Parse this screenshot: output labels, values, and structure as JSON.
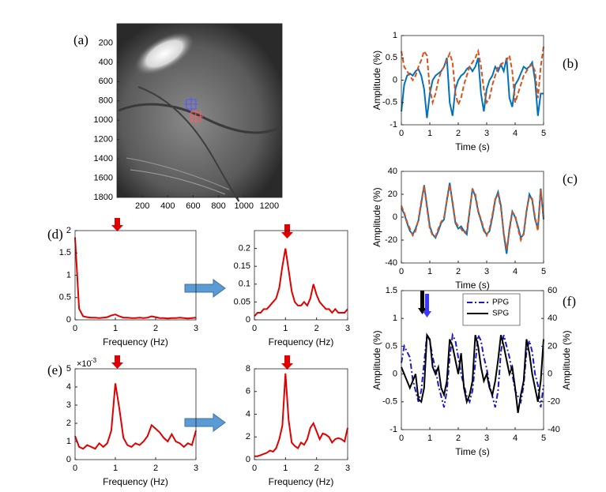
{
  "chart_data": [
    {
      "type": "image",
      "label": "(a)",
      "xlim": [
        0,
        1300
      ],
      "ylim": [
        0,
        1800
      ],
      "yreverse": true,
      "xticks": [
        200,
        400,
        600,
        800,
        1000,
        1200
      ],
      "yticks": [
        200,
        400,
        600,
        800,
        1000,
        1200,
        1400,
        1600,
        1800
      ],
      "points": [
        {
          "x": 584,
          "y": 834,
          "color": "#5a5aff"
        },
        {
          "x": 621,
          "y": 964,
          "color": "#ff5a5a"
        }
      ]
    },
    {
      "type": "line",
      "label": "(b)",
      "xlabel": "Time (s)",
      "ylabel": "Amplitude (%)",
      "xlim": [
        0,
        5
      ],
      "ylim": [
        -1,
        1
      ],
      "xticks": [
        0,
        1,
        2,
        3,
        4,
        5
      ],
      "yticks": [
        -1,
        -0.5,
        0,
        0.5,
        1
      ],
      "x": [
        0,
        0.1,
        0.2,
        0.3,
        0.4,
        0.5,
        0.6,
        0.7,
        0.8,
        0.9,
        1,
        1.1,
        1.2,
        1.3,
        1.4,
        1.5,
        1.6,
        1.7,
        1.8,
        1.9,
        2,
        2.1,
        2.2,
        2.3,
        2.4,
        2.5,
        2.6,
        2.7,
        2.8,
        2.9,
        3,
        3.1,
        3.2,
        3.3,
        3.4,
        3.5,
        3.6,
        3.7,
        3.8,
        3.9,
        4,
        4.1,
        4.2,
        4.3,
        4.4,
        4.5,
        4.6,
        4.7,
        4.8,
        4.9,
        5
      ],
      "series": [
        {
          "color": "#0072bd",
          "dash": "solid",
          "values": [
            -0.7,
            -0.1,
            0.1,
            0.15,
            0.1,
            0.2,
            0.25,
            0.1,
            -0.2,
            -0.85,
            -0.3,
            0.0,
            0.1,
            0.15,
            0.2,
            0.3,
            0.5,
            -0.5,
            -0.8,
            -0.2,
            0.0,
            0.1,
            0.15,
            0.25,
            0.3,
            0.2,
            0.3,
            0.5,
            -0.3,
            -0.7,
            -0.2,
            0.0,
            0.1,
            0.3,
            0.2,
            0.35,
            0.2,
            0.5,
            -0.4,
            -0.6,
            -0.1,
            0.0,
            0.15,
            0.3,
            0.25,
            0.3,
            0.4,
            0.0,
            -0.8,
            -0.3,
            -0.3
          ]
        },
        {
          "color": "#d95319",
          "dash": "dashed",
          "values": [
            0.65,
            0.3,
            0.2,
            0.1,
            0.0,
            0.1,
            0.3,
            0.45,
            0.65,
            0.55,
            -0.2,
            -0.5,
            -0.3,
            0.0,
            0.2,
            0.3,
            0.45,
            0.6,
            0.4,
            -0.3,
            -0.55,
            -0.4,
            -0.1,
            0.1,
            0.3,
            0.4,
            0.5,
            0.65,
            0.3,
            -0.2,
            -0.5,
            -0.4,
            -0.1,
            0.1,
            0.3,
            0.35,
            0.4,
            0.45,
            0.55,
            0.2,
            -0.5,
            -0.3,
            -0.1,
            0.1,
            0.2,
            0.3,
            0.35,
            0.2,
            -0.4,
            0.3,
            0.75
          ]
        }
      ]
    },
    {
      "type": "line",
      "label": "(c)",
      "xlabel": "Time (s)",
      "ylabel": "Amplitude (%)",
      "xlim": [
        0,
        5
      ],
      "ylim": [
        -40,
        40
      ],
      "xticks": [
        0,
        1,
        2,
        3,
        4,
        5
      ],
      "yticks": [
        -40,
        -20,
        0,
        20,
        40
      ],
      "x": [
        0,
        0.1,
        0.2,
        0.3,
        0.4,
        0.5,
        0.6,
        0.7,
        0.8,
        0.9,
        1,
        1.1,
        1.2,
        1.3,
        1.4,
        1.5,
        1.6,
        1.7,
        1.8,
        1.9,
        2,
        2.1,
        2.2,
        2.3,
        2.4,
        2.5,
        2.6,
        2.7,
        2.8,
        2.9,
        3,
        3.1,
        3.2,
        3.3,
        3.4,
        3.5,
        3.6,
        3.7,
        3.8,
        3.9,
        4,
        4.1,
        4.2,
        4.3,
        4.4,
        4.5,
        4.6,
        4.7,
        4.8,
        4.9,
        5
      ],
      "series": [
        {
          "color": "#0072bd",
          "dash": "solid",
          "values": [
            8,
            3,
            -5,
            -12,
            -15,
            -10,
            -3,
            12,
            28,
            10,
            -8,
            -15,
            -18,
            -12,
            -5,
            -2,
            15,
            30,
            12,
            -5,
            -10,
            -8,
            -12,
            -15,
            5,
            25,
            18,
            5,
            -3,
            -12,
            -15,
            -12,
            0,
            15,
            22,
            10,
            -15,
            -32,
            -10,
            5,
            0,
            -8,
            -18,
            -15,
            5,
            20,
            15,
            -2,
            -10,
            25,
            -2
          ]
        },
        {
          "color": "#d95319",
          "dash": "dashed",
          "values": [
            10,
            4,
            -4,
            -10,
            -16,
            -12,
            -2,
            14,
            27,
            8,
            -10,
            -16,
            -17,
            -10,
            -4,
            0,
            14,
            28,
            14,
            -4,
            -8,
            -10,
            -14,
            -12,
            6,
            24,
            20,
            6,
            -2,
            -10,
            -16,
            -10,
            2,
            16,
            20,
            8,
            -14,
            -28,
            -12,
            4,
            2,
            -10,
            -20,
            -14,
            6,
            18,
            16,
            0,
            -12,
            24,
            0
          ]
        }
      ]
    },
    {
      "type": "line",
      "label": "(d)",
      "xlabel": "Frequency (Hz)",
      "xlim": [
        0,
        3
      ],
      "ylim": [
        0,
        2
      ],
      "xticks": [
        0,
        1,
        2,
        3
      ],
      "yticks": [
        0,
        0.5,
        1,
        1.5,
        2
      ],
      "x": [
        0,
        0.1,
        0.2,
        0.3,
        0.4,
        0.5,
        0.6,
        0.7,
        0.8,
        0.9,
        1,
        1.1,
        1.2,
        1.3,
        1.4,
        1.5,
        1.6,
        1.7,
        1.8,
        1.9,
        2,
        2.1,
        2.2,
        2.3,
        2.4,
        2.5,
        2.6,
        2.7,
        2.8,
        2.9,
        3
      ],
      "series": [
        {
          "color": "#e00000",
          "dash": "solid",
          "values": [
            1.85,
            0.25,
            0.08,
            0.06,
            0.05,
            0.05,
            0.04,
            0.05,
            0.06,
            0.1,
            0.12,
            0.08,
            0.05,
            0.05,
            0.04,
            0.04,
            0.05,
            0.04,
            0.05,
            0.08,
            0.06,
            0.04,
            0.04,
            0.03,
            0.04,
            0.04,
            0.05,
            0.04,
            0.03,
            0.04,
            0.05
          ]
        }
      ]
    },
    {
      "type": "line",
      "xlabel": "Frequency (Hz)",
      "xlim": [
        0,
        3
      ],
      "ylim": [
        0,
        0.25
      ],
      "xticks": [
        0,
        1,
        2,
        3
      ],
      "yticks": [
        0,
        0.05,
        0.1,
        0.15,
        0.2
      ],
      "x": [
        0,
        0.1,
        0.2,
        0.3,
        0.4,
        0.5,
        0.6,
        0.7,
        0.8,
        0.9,
        1,
        1.1,
        1.2,
        1.3,
        1.4,
        1.5,
        1.6,
        1.7,
        1.8,
        1.9,
        2,
        2.1,
        2.2,
        2.3,
        2.4,
        2.5,
        2.6,
        2.7,
        2.8,
        2.9,
        3
      ],
      "series": [
        {
          "color": "#e00000",
          "dash": "solid",
          "values": [
            0.01,
            0.02,
            0.02,
            0.03,
            0.03,
            0.04,
            0.05,
            0.06,
            0.09,
            0.15,
            0.2,
            0.14,
            0.08,
            0.05,
            0.04,
            0.04,
            0.05,
            0.04,
            0.06,
            0.1,
            0.07,
            0.05,
            0.04,
            0.03,
            0.03,
            0.02,
            0.03,
            0.02,
            0.02,
            0.02,
            0.03
          ]
        }
      ]
    },
    {
      "type": "line",
      "label": "(e)",
      "xlabel": "Frequency (Hz)",
      "multiplier": {
        "base": "×10",
        "exponent": "-3"
      },
      "xlim": [
        0,
        3
      ],
      "ylim": [
        0,
        5
      ],
      "xticks": [
        0,
        1,
        2,
        3
      ],
      "yticks": [
        0,
        1,
        2,
        3,
        4,
        5
      ],
      "x": [
        0,
        0.1,
        0.2,
        0.3,
        0.4,
        0.5,
        0.6,
        0.7,
        0.8,
        0.9,
        1,
        1.1,
        1.2,
        1.3,
        1.4,
        1.5,
        1.6,
        1.7,
        1.8,
        1.9,
        2,
        2.1,
        2.2,
        2.3,
        2.4,
        2.5,
        2.6,
        2.7,
        2.8,
        2.9,
        3
      ],
      "series": [
        {
          "color": "#e00000",
          "dash": "solid",
          "values": [
            1.3,
            0.7,
            0.6,
            0.8,
            0.7,
            0.6,
            0.9,
            0.7,
            0.9,
            1.6,
            4.2,
            2.8,
            1.2,
            0.8,
            0.7,
            0.9,
            0.8,
            1.0,
            1.3,
            1.9,
            1.7,
            1.5,
            1.2,
            1.0,
            1.4,
            1.0,
            0.9,
            0.7,
            0.9,
            0.8,
            1.6
          ]
        }
      ]
    },
    {
      "type": "line",
      "xlabel": "Frequency (Hz)",
      "xlim": [
        0,
        3
      ],
      "ylim": [
        0,
        8
      ],
      "xticks": [
        0,
        1,
        2,
        3
      ],
      "yticks": [
        0,
        2,
        4,
        6,
        8
      ],
      "x": [
        0,
        0.1,
        0.2,
        0.3,
        0.4,
        0.5,
        0.6,
        0.7,
        0.8,
        0.9,
        1,
        1.1,
        1.2,
        1.3,
        1.4,
        1.5,
        1.6,
        1.7,
        1.8,
        1.9,
        2,
        2.1,
        2.2,
        2.3,
        2.4,
        2.5,
        2.6,
        2.7,
        2.8,
        2.9,
        3
      ],
      "series": [
        {
          "color": "#e00000",
          "dash": "solid",
          "values": [
            0.3,
            0.3,
            0.4,
            0.5,
            0.6,
            0.8,
            0.7,
            1.0,
            1.8,
            3.0,
            7.6,
            3.5,
            1.5,
            1.2,
            1.0,
            1.5,
            1.3,
            1.8,
            2.8,
            3.2,
            2.5,
            1.8,
            2.3,
            2.2,
            2.0,
            1.5,
            1.8,
            1.9,
            1.8,
            1.6,
            2.8
          ]
        }
      ]
    },
    {
      "type": "line",
      "label": "(f)",
      "xlabel": "Time (s)",
      "ylabel": "Amplitude (%)",
      "y2label": "Amplitude (%)",
      "ycolor": "#1a1acc",
      "legend": "upper right",
      "xlim": [
        0,
        5
      ],
      "ylim": [
        -1,
        1.5
      ],
      "y2lim": [
        -40,
        60
      ],
      "xticks": [
        0,
        1,
        2,
        3,
        4,
        5
      ],
      "yticks": [
        -1,
        -0.5,
        0,
        0.5,
        1,
        1.5
      ],
      "y2ticks": [
        -40,
        -20,
        0,
        20,
        40,
        60
      ],
      "x": [
        0,
        0.1,
        0.2,
        0.3,
        0.4,
        0.5,
        0.6,
        0.7,
        0.8,
        0.9,
        1,
        1.1,
        1.2,
        1.3,
        1.4,
        1.5,
        1.6,
        1.7,
        1.8,
        1.9,
        2,
        2.1,
        2.2,
        2.3,
        2.4,
        2.5,
        2.6,
        2.7,
        2.8,
        2.9,
        3,
        3.1,
        3.2,
        3.3,
        3.4,
        3.5,
        3.6,
        3.7,
        3.8,
        3.9,
        4,
        4.1,
        4.2,
        4.3,
        4.4,
        4.5,
        4.6,
        4.7,
        4.8,
        4.9,
        5
      ],
      "series": [
        {
          "name": "PPG",
          "color": "#1a1acc",
          "dash": "dashdot",
          "values": [
            0.2,
            0.5,
            0.4,
            0.3,
            -0.1,
            -0.3,
            -0.5,
            -0.3,
            0.2,
            0.7,
            0.6,
            0.3,
            0.1,
            -0.2,
            -0.4,
            -0.6,
            -0.3,
            0.3,
            0.7,
            0.6,
            0.3,
            0.0,
            -0.2,
            -0.4,
            -0.5,
            -0.3,
            0.2,
            0.7,
            0.6,
            0.3,
            0.1,
            -0.2,
            -0.4,
            -0.6,
            -0.3,
            0.4,
            0.7,
            0.5,
            0.3,
            0.0,
            -0.3,
            -0.4,
            -0.5,
            -0.2,
            0.4,
            0.6,
            0.4,
            0.0,
            -0.2,
            -0.6,
            -0.2
          ]
        },
        {
          "name": "SPG",
          "color": "#000000",
          "dash": "solid",
          "axis": "y2",
          "values": [
            5,
            0,
            -5,
            -10,
            -5,
            0,
            -18,
            -20,
            -10,
            28,
            25,
            5,
            0,
            5,
            -10,
            -15,
            -5,
            25,
            20,
            10,
            0,
            15,
            -10,
            -20,
            -15,
            -5,
            28,
            20,
            5,
            -5,
            0,
            -10,
            -15,
            -5,
            10,
            28,
            20,
            10,
            0,
            5,
            -10,
            -28,
            -15,
            -5,
            25,
            15,
            0,
            -10,
            -20,
            -5,
            25
          ]
        }
      ]
    }
  ]
}
